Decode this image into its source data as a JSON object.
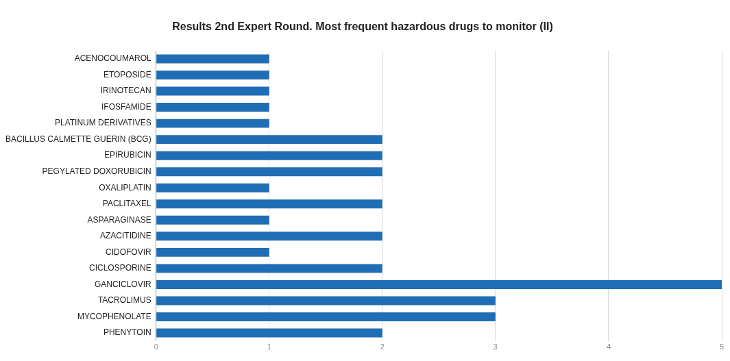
{
  "chart_data": {
    "type": "bar",
    "orientation": "horizontal",
    "title": "Results 2nd Expert Round. Most frequent hazardous drugs to monitor (II)",
    "categories": [
      "ACENOCOUMAROL",
      "ETOPOSIDE",
      "IRINOTECAN",
      "IFOSFAMIDE",
      "PLATINUM DERIVATIVES",
      "BACILLUS CALMETTE GUERIN (BCG)",
      "EPIRUBICIN",
      "PEGYLATED DOXORUBICIN",
      "OXALIPLATIN",
      "PACLITAXEL",
      "ASPARAGINASE",
      "AZACITIDINE",
      "CIDOFOVIR",
      "CICLOSPORINE",
      "GANCICLOVIR",
      "TACROLIMUS",
      "MYCOPHENOLATE",
      "PHENYTOIN"
    ],
    "values": [
      1,
      1,
      1,
      1,
      1,
      2,
      2,
      2,
      1,
      2,
      1,
      2,
      1,
      2,
      5,
      3,
      3,
      2
    ],
    "color": "#1f6eb5",
    "xlim": [
      0,
      5
    ],
    "xticks": [
      0,
      1,
      2,
      3,
      4,
      5
    ],
    "grid": "x",
    "legend": false
  }
}
